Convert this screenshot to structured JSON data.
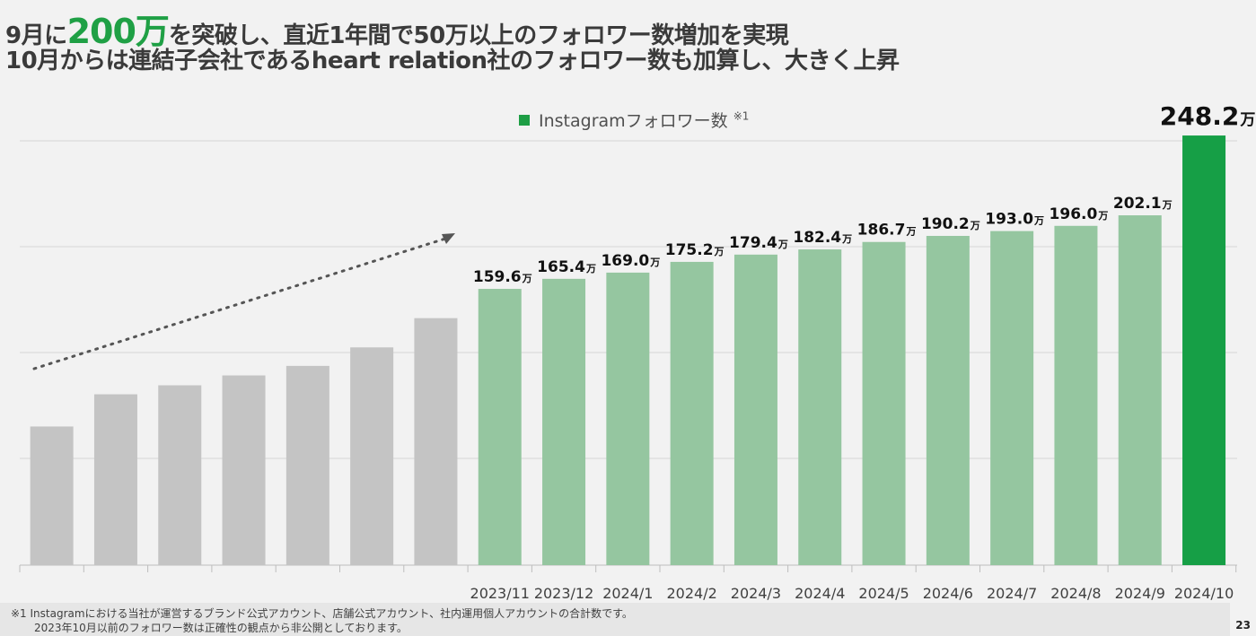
{
  "header": {
    "line1_pre": "9月に",
    "line1_big": "200万",
    "line1_post": "を突破し、直近1年間で50万以上のフォロワー数増加を実現",
    "line2": "10月からは連結子会社であるheart relation社のフォロワー数も加算し、大きく上昇"
  },
  "legend": {
    "label": "Instagramフォロワー数",
    "note": "※1"
  },
  "chart_data": {
    "type": "bar",
    "unit": "万",
    "ylim": [
      0,
      270
    ],
    "grid": true,
    "categories": [
      "",
      "",
      "",
      "",
      "",
      "",
      "",
      "2023/11",
      "2023/12",
      "2024/1",
      "2024/2",
      "2024/3",
      "2024/4",
      "2024/5",
      "2024/6",
      "2024/7",
      "2024/8",
      "2024/9",
      "2024/10"
    ],
    "values": [
      80.1,
      98.7,
      103.9,
      109.6,
      115.1,
      125.8,
      142.7,
      159.6,
      165.4,
      169.0,
      175.2,
      179.4,
      182.4,
      186.7,
      190.2,
      193.0,
      196.0,
      202.1,
      248.2
    ],
    "value_labels": [
      "",
      "",
      "",
      "",
      "",
      "",
      "",
      "159.6",
      "165.4",
      "169.0",
      "175.2",
      "179.4",
      "182.4",
      "186.7",
      "190.2",
      "193.0",
      "196.0",
      "202.1",
      "248.2"
    ],
    "bar_colors": [
      "#c4c4c4",
      "#c4c4c4",
      "#c4c4c4",
      "#c4c4c4",
      "#c4c4c4",
      "#c4c4c4",
      "#c4c4c4",
      "#95c6a0",
      "#95c6a0",
      "#95c6a0",
      "#95c6a0",
      "#95c6a0",
      "#95c6a0",
      "#95c6a0",
      "#95c6a0",
      "#95c6a0",
      "#95c6a0",
      "#95c6a0",
      "#169f46"
    ],
    "trend_arrow": "dotted"
  },
  "footnote": {
    "line1": "※1 Instagramにおける当社が運営するブランド公式アカウント、店舗公式アカウント、社内運用個人アカウントの合計数です。",
    "line2": "2023年10月以前のフォロワー数は正確性の観点から非公開としております。"
  },
  "page_number": "23"
}
